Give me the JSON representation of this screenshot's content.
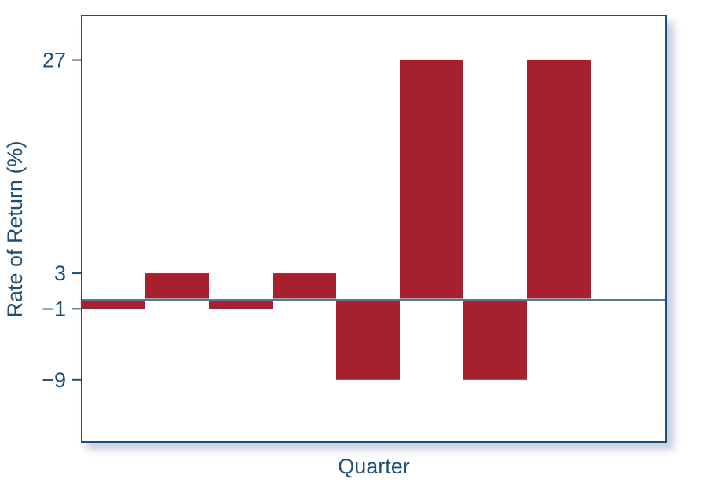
{
  "chart_data": {
    "type": "bar",
    "title": "",
    "xlabel": "Quarter",
    "ylabel": "Rate of Return (%)",
    "yticks": [
      27,
      3,
      -1,
      -9
    ],
    "ytick_labels": [
      "27",
      "3",
      "−1",
      "−9"
    ],
    "ylim": [
      -16,
      32
    ],
    "values": [
      -1,
      3,
      -1,
      3,
      -9,
      27,
      -9,
      27
    ],
    "xtick_labels_shown": false,
    "grid": false,
    "legend": "none",
    "colors": {
      "bar": "#a6202f",
      "axis": "#1d4f77",
      "text": "#1d4f77",
      "shadow": "#9aa6c4"
    }
  }
}
